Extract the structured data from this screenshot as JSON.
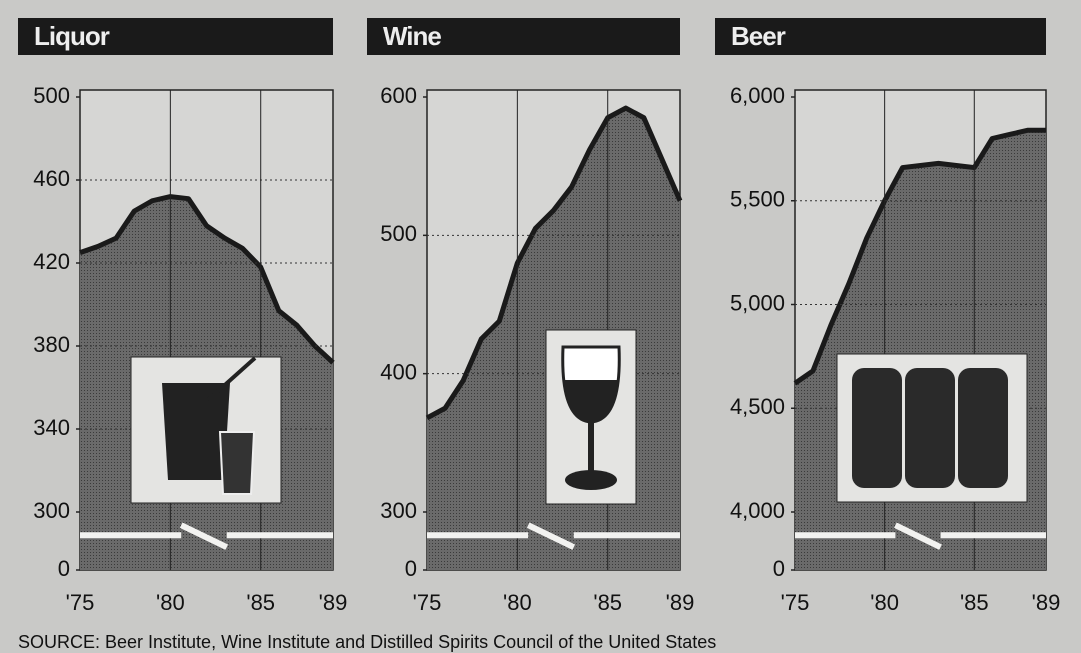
{
  "chart_data": [
    {
      "type": "area",
      "title": "Liquor",
      "axis_break": true,
      "grid": true,
      "color": "#5a5a5a",
      "x": [
        1975,
        1976,
        1977,
        1978,
        1979,
        1980,
        1981,
        1982,
        1983,
        1984,
        1985,
        1986,
        1987,
        1988,
        1989
      ],
      "values": [
        425,
        428,
        432,
        445,
        450,
        452,
        451,
        438,
        432,
        427,
        418,
        397,
        390,
        380,
        372
      ],
      "xlim": [
        1975,
        1989
      ],
      "xticks": [
        {
          "value": 1975,
          "label": "'75"
        },
        {
          "value": 1980,
          "label": "'80"
        },
        {
          "value": 1985,
          "label": "'85"
        },
        {
          "value": 1989,
          "label": "'89"
        }
      ],
      "ylim": [
        0,
        500
      ],
      "yticks": [
        0,
        300,
        340,
        380,
        420,
        460,
        500
      ]
    },
    {
      "type": "area",
      "title": "Wine",
      "axis_break": true,
      "grid": true,
      "color": "#5a5a5a",
      "x": [
        1975,
        1976,
        1977,
        1978,
        1979,
        1980,
        1981,
        1982,
        1983,
        1984,
        1985,
        1986,
        1987,
        1988,
        1989
      ],
      "values": [
        368,
        375,
        395,
        425,
        438,
        480,
        505,
        518,
        535,
        562,
        585,
        592,
        585,
        555,
        525
      ],
      "xlim": [
        1975,
        1989
      ],
      "xticks": [
        {
          "value": 1975,
          "label": "'75"
        },
        {
          "value": 1980,
          "label": "'80"
        },
        {
          "value": 1985,
          "label": "'85"
        },
        {
          "value": 1989,
          "label": "'89"
        }
      ],
      "ylim": [
        0,
        600
      ],
      "yticks": [
        0,
        300,
        400,
        500,
        600
      ]
    },
    {
      "type": "area",
      "title": "Beer",
      "axis_break": true,
      "grid": true,
      "color": "#5a5a5a",
      "x": [
        1975,
        1976,
        1977,
        1978,
        1979,
        1980,
        1981,
        1982,
        1983,
        1984,
        1985,
        1986,
        1987,
        1988,
        1989
      ],
      "values": [
        4620,
        4680,
        4900,
        5100,
        5320,
        5500,
        5660,
        5670,
        5680,
        5670,
        5660,
        5800,
        5820,
        5840,
        5840
      ],
      "xlim": [
        1975,
        1989
      ],
      "xticks": [
        {
          "value": 1975,
          "label": "'75"
        },
        {
          "value": 1980,
          "label": "'80"
        },
        {
          "value": 1985,
          "label": "'85"
        },
        {
          "value": 1989,
          "label": "'89"
        }
      ],
      "ylim": [
        0,
        6000
      ],
      "yticks": [
        0,
        {
          "value": 4000,
          "label": "4,000"
        },
        {
          "value": 4500,
          "label": "4,500"
        },
        {
          "value": 5000,
          "label": "5,000"
        },
        {
          "value": 5500,
          "label": "5,500"
        },
        {
          "value": 6000,
          "label": "6,000"
        }
      ]
    }
  ],
  "source": "SOURCE:  Beer Institute, Wine Institute and Distilled Spirits Council of the United States"
}
